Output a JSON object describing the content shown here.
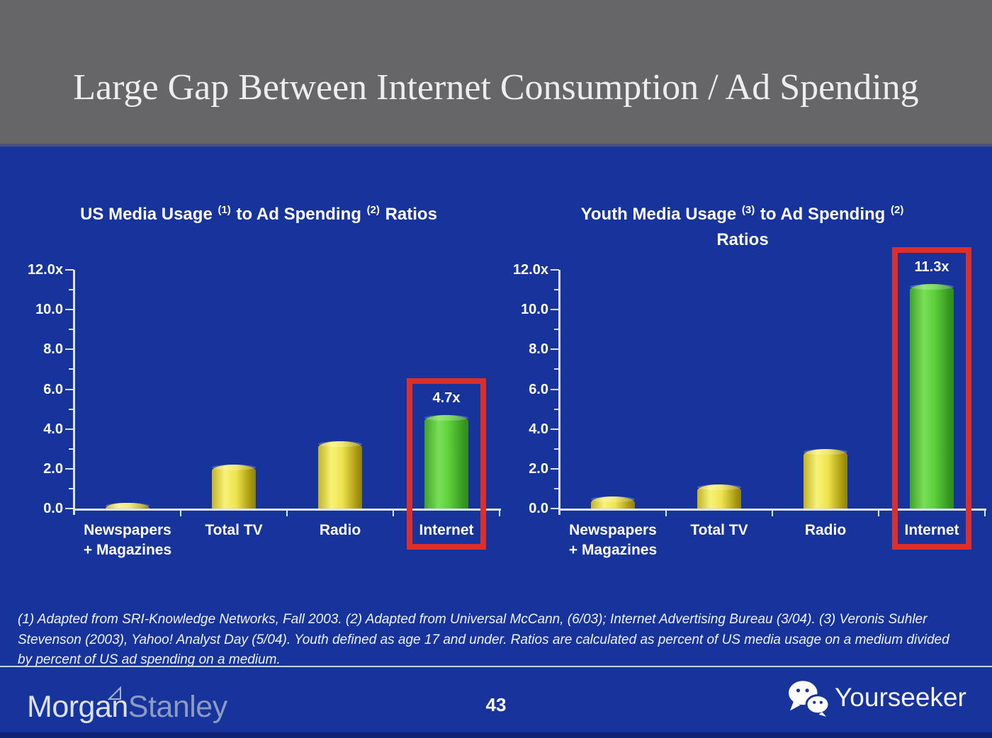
{
  "header": {
    "title": "Large Gap Between Internet Consumption / Ad Spending"
  },
  "chart_data": [
    {
      "type": "bar",
      "title_segments": [
        {
          "t": "US Media Usage "
        },
        {
          "sup": "(1)"
        },
        {
          "t": " to Ad Spending "
        },
        {
          "sup": "(2)"
        },
        {
          "t": " Ratios"
        }
      ],
      "categories": [
        "Newspapers\n+ Magazines",
        "Total TV",
        "Radio",
        "Internet"
      ],
      "values": [
        0.3,
        2.2,
        3.4,
        4.7
      ],
      "bar_value_labels": [
        "",
        "",
        "",
        "4.7x"
      ],
      "ylim": [
        0,
        12
      ],
      "ytick_values": [
        0,
        2,
        4,
        6,
        8,
        10,
        12
      ],
      "ytick_labels": [
        "0.0",
        "2.0",
        "4.0",
        "6.0",
        "8.0",
        "10.0",
        "12.0x"
      ],
      "yminor_values": [
        1,
        3,
        5,
        7,
        9,
        11
      ],
      "grid": "off",
      "legend": "none",
      "highlight": {
        "index": 3,
        "label": "4.7x"
      }
    },
    {
      "type": "bar",
      "title_segments": [
        {
          "t": "Youth Media Usage "
        },
        {
          "sup": "(3)"
        },
        {
          "t": " to Ad Spending "
        },
        {
          "sup": "(2)"
        },
        {
          "br": true
        },
        {
          "t": "Ratios"
        }
      ],
      "categories": [
        "Newspapers\n+ Magazines",
        "Total TV",
        "Radio",
        "Internet"
      ],
      "values": [
        0.6,
        1.2,
        3.0,
        11.3
      ],
      "bar_value_labels": [
        "",
        "",
        "",
        "11.3x"
      ],
      "ylim": [
        0,
        12
      ],
      "ytick_values": [
        0,
        2,
        4,
        6,
        8,
        10,
        12
      ],
      "ytick_labels": [
        "0.0",
        "2.0",
        "4.0",
        "6.0",
        "8.0",
        "10.0",
        "12.0x"
      ],
      "yminor_values": [
        1,
        3,
        5,
        7,
        9,
        11
      ],
      "grid": "off",
      "legend": "none",
      "highlight": {
        "index": 3,
        "label": "11.3x"
      }
    }
  ],
  "footnote": "(1) Adapted from SRI-Knowledge Networks, Fall 2003.  (2) Adapted from Universal McCann, (6/03); Internet Advertising Bureau (3/04). (3) Veronis Suhler\nStevenson (2003), Yahoo! Analyst Day (5/04).  Youth defined as age 17 and under.  Ratios are calculated as percent of US media usage on a medium divided\nby percent of US ad spending on a medium.",
  "footer": {
    "brand_word_1": "Morgan",
    "brand_word_2": "Stanley",
    "page_number": "43",
    "watermark": "Yourseeker"
  },
  "colors": {
    "background_blue": "#17339c",
    "header_gray": "#666669",
    "highlight_red": "#dc2f2a",
    "axis_white": "#dce4f4",
    "bar_yellow": "#eee44e",
    "bar_green": "#5ed13c"
  }
}
